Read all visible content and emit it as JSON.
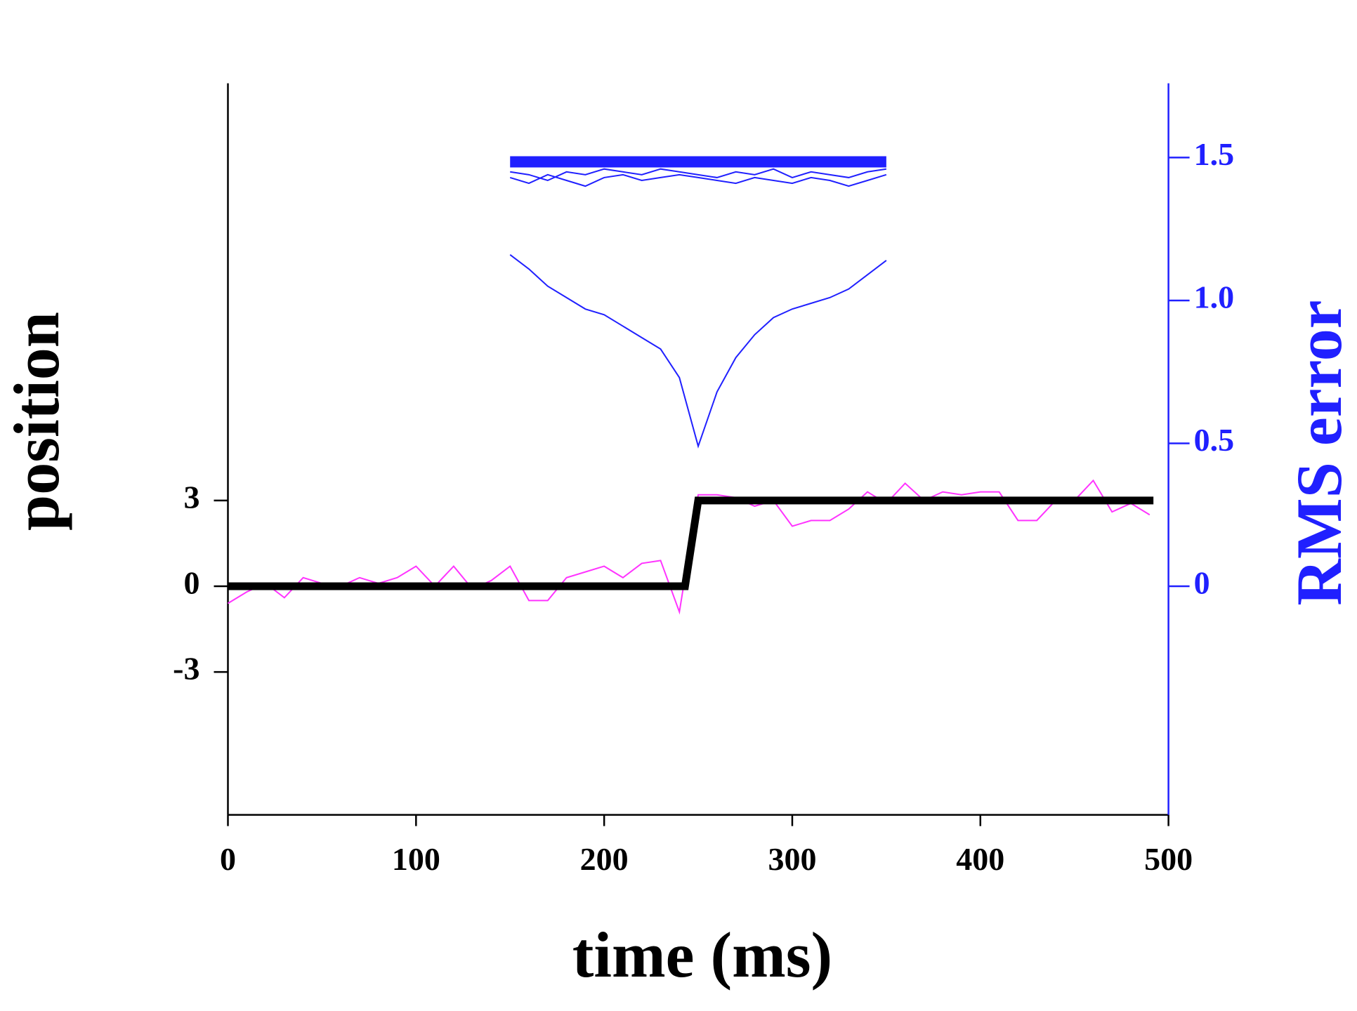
{
  "chart_data": {
    "type": "line",
    "xlabel": "time (ms)",
    "ylabel": "position",
    "y2label": "RMS error",
    "xlim": [
      0,
      500
    ],
    "xticks": [
      0,
      100,
      200,
      300,
      400,
      500
    ],
    "ylim": [
      -8,
      17.6
    ],
    "yticks": [
      -3,
      0,
      3
    ],
    "y2lim": [
      -0.8,
      1.76
    ],
    "y2ticks": [
      0,
      0.5,
      {
        "value": 1,
        "label": "1.0"
      },
      1.5
    ],
    "y2color": "#2020ff",
    "series": [
      {
        "color": "#ff33ff",
        "line_width": 2,
        "x": [
          0,
          10,
          20,
          30,
          40,
          50,
          60,
          70,
          80,
          90,
          100,
          110,
          120,
          130,
          140,
          150,
          160,
          170,
          180,
          190,
          200,
          210,
          220,
          230,
          240,
          250,
          260,
          270,
          280,
          290,
          300,
          310,
          320,
          330,
          340,
          350,
          360,
          370,
          380,
          390,
          400,
          410,
          420,
          430,
          440,
          450,
          460,
          470,
          480,
          490
        ],
        "values": [
          -0.6,
          -0.2,
          0.1,
          -0.4,
          0.3,
          0.1,
          0.0,
          0.3,
          0.1,
          0.3,
          0.7,
          0.0,
          0.7,
          -0.1,
          0.2,
          0.7,
          -0.5,
          -0.5,
          0.3,
          0.5,
          0.7,
          0.3,
          0.8,
          0.9,
          -0.9,
          3.2,
          3.2,
          3.1,
          2.8,
          3.0,
          2.1,
          2.3,
          2.3,
          2.7,
          3.3,
          2.9,
          3.6,
          3.0,
          3.3,
          3.2,
          3.3,
          3.3,
          2.3,
          2.3,
          3.0,
          3.0,
          3.7,
          2.6,
          2.9,
          2.5
        ]
      },
      {
        "color": "#000000",
        "line_width": 11,
        "x": [
          0,
          243,
          250,
          492
        ],
        "values": [
          0,
          0,
          3,
          3
        ]
      },
      {
        "color": "#2020ff",
        "line_width": 2,
        "axis": "y2",
        "x": [
          150,
          160,
          170,
          180,
          190,
          200,
          210,
          220,
          230,
          240,
          250,
          260,
          270,
          280,
          290,
          300,
          310,
          320,
          330,
          340,
          350
        ],
        "values": [
          1.16,
          1.11,
          1.05,
          1.01,
          0.97,
          0.95,
          0.91,
          0.87,
          0.83,
          0.73,
          0.49,
          0.68,
          0.8,
          0.88,
          0.94,
          0.97,
          0.99,
          1.01,
          1.04,
          1.09,
          1.14
        ]
      },
      {
        "color": "#2020ff",
        "line_width": 2,
        "axis": "y2",
        "x": [
          150,
          160,
          170,
          180,
          190,
          200,
          210,
          220,
          230,
          240,
          250,
          260,
          270,
          280,
          290,
          300,
          310,
          320,
          330,
          340,
          350
        ],
        "values": [
          1.43,
          1.41,
          1.44,
          1.42,
          1.4,
          1.43,
          1.44,
          1.42,
          1.43,
          1.44,
          1.43,
          1.42,
          1.41,
          1.43,
          1.42,
          1.41,
          1.43,
          1.42,
          1.4,
          1.42,
          1.44
        ]
      },
      {
        "color": "#2020ff",
        "line_width": 2,
        "axis": "y2",
        "x": [
          150,
          160,
          170,
          180,
          190,
          200,
          210,
          220,
          230,
          240,
          250,
          260,
          270,
          280,
          290,
          300,
          310,
          320,
          330,
          340,
          350
        ],
        "values": [
          1.45,
          1.44,
          1.42,
          1.45,
          1.44,
          1.46,
          1.45,
          1.44,
          1.46,
          1.45,
          1.44,
          1.43,
          1.45,
          1.44,
          1.46,
          1.43,
          1.45,
          1.44,
          1.43,
          1.45,
          1.46
        ]
      },
      {
        "color": "#2020ff",
        "line_width": 16,
        "axis": "y2",
        "x": [
          150,
          350
        ],
        "values": [
          1.485,
          1.485
        ]
      }
    ]
  }
}
